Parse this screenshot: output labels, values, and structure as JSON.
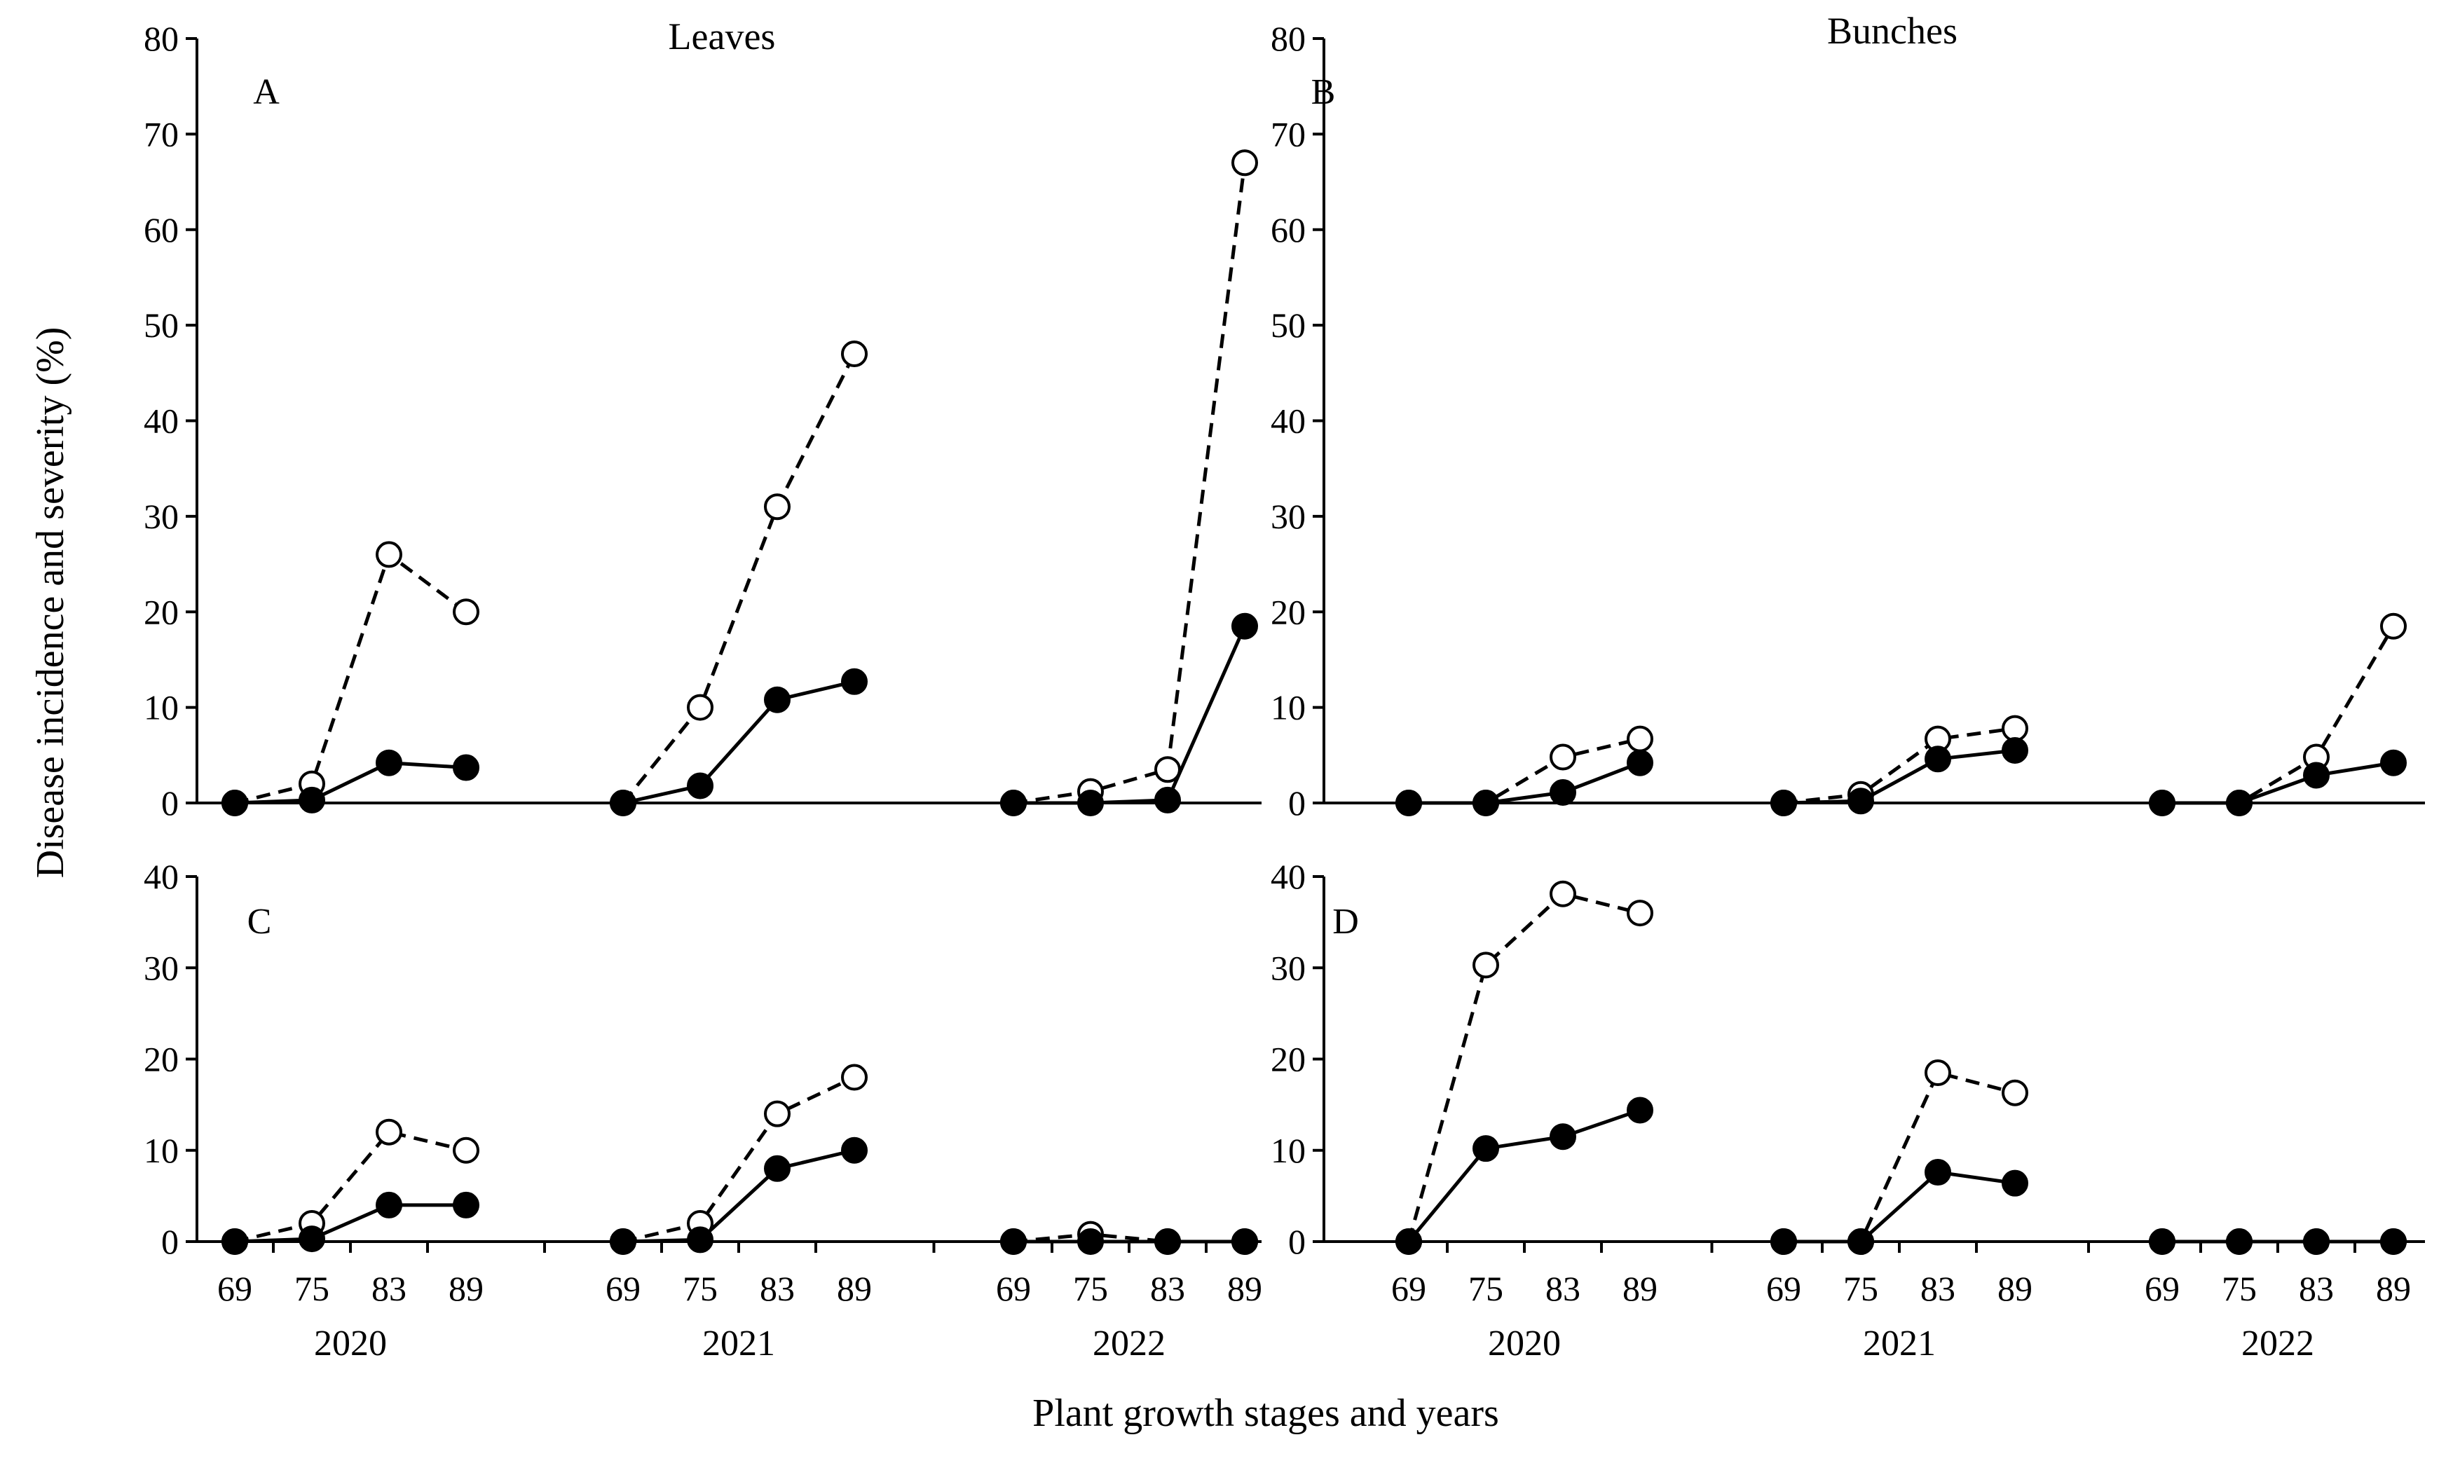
{
  "figure": {
    "col_titles": [
      "Leaves",
      "Bunches"
    ],
    "ylabel": "Disease incidence and severity (%)",
    "xlabel": "Plant growth stages and years"
  },
  "chart_data": [
    {
      "type": "line",
      "panel": "A",
      "title": "Leaves",
      "ylim": [
        0,
        80
      ],
      "yticks": [
        0,
        10,
        20,
        30,
        40,
        50,
        60,
        70,
        80
      ],
      "years": [
        "2020",
        "2021",
        "2022"
      ],
      "stages": [
        "69",
        "75",
        "83",
        "89"
      ],
      "series": [
        {
          "name": "incidence",
          "style": "dashed-open",
          "groups": [
            [
              0,
              2,
              26,
              20
            ],
            [
              0,
              10,
              31,
              47
            ],
            [
              0,
              1.2,
              3.5,
              67
            ]
          ]
        },
        {
          "name": "severity",
          "style": "solid-filled",
          "groups": [
            [
              0,
              0.3,
              4.2,
              3.7
            ],
            [
              0,
              1.8,
              10.8,
              12.7
            ],
            [
              0,
              0,
              0.3,
              18.5
            ]
          ]
        }
      ]
    },
    {
      "type": "line",
      "panel": "B",
      "title": "Bunches",
      "ylim": [
        0,
        80
      ],
      "yticks": [
        0,
        10,
        20,
        30,
        40,
        50,
        60,
        70,
        80
      ],
      "years": [
        "2020",
        "2021",
        "2022"
      ],
      "stages": [
        "69",
        "75",
        "83",
        "89"
      ],
      "series": [
        {
          "name": "incidence",
          "style": "dashed-open",
          "groups": [
            [
              0,
              0,
              4.8,
              6.7
            ],
            [
              0,
              0.9,
              6.7,
              7.8
            ],
            [
              0,
              0,
              4.8,
              18.5
            ]
          ]
        },
        {
          "name": "severity",
          "style": "solid-filled",
          "groups": [
            [
              0,
              0,
              1.1,
              4.2
            ],
            [
              0,
              0.2,
              4.6,
              5.5
            ],
            [
              0,
              0,
              2.9,
              4.2
            ]
          ]
        }
      ]
    },
    {
      "type": "line",
      "panel": "C",
      "title": "",
      "ylim": [
        0,
        40
      ],
      "yticks": [
        0,
        10,
        20,
        30,
        40
      ],
      "years": [
        "2020",
        "2021",
        "2022"
      ],
      "stages": [
        "69",
        "75",
        "83",
        "89"
      ],
      "series": [
        {
          "name": "incidence",
          "style": "dashed-open",
          "groups": [
            [
              0,
              2,
              12,
              10
            ],
            [
              0,
              2,
              14,
              18
            ],
            [
              0,
              0.8,
              0,
              0
            ]
          ]
        },
        {
          "name": "severity",
          "style": "solid-filled",
          "groups": [
            [
              0,
              0.3,
              4,
              4
            ],
            [
              0,
              0.2,
              8,
              10
            ],
            [
              0,
              0,
              0,
              0
            ]
          ]
        }
      ]
    },
    {
      "type": "line",
      "panel": "D",
      "title": "",
      "ylim": [
        0,
        40
      ],
      "yticks": [
        0,
        10,
        20,
        30,
        40
      ],
      "years": [
        "2020",
        "2021",
        "2022"
      ],
      "stages": [
        "69",
        "75",
        "83",
        "89"
      ],
      "series": [
        {
          "name": "incidence",
          "style": "dashed-open",
          "groups": [
            [
              0,
              30.3,
              38.1,
              36
            ],
            [
              0,
              0,
              18.5,
              16.3
            ],
            [
              0,
              0,
              0,
              0
            ]
          ]
        },
        {
          "name": "severity",
          "style": "solid-filled",
          "groups": [
            [
              0,
              10.2,
              11.5,
              14.4
            ],
            [
              0,
              0,
              7.6,
              6.4
            ],
            [
              0,
              0,
              0,
              0
            ]
          ]
        }
      ]
    }
  ]
}
